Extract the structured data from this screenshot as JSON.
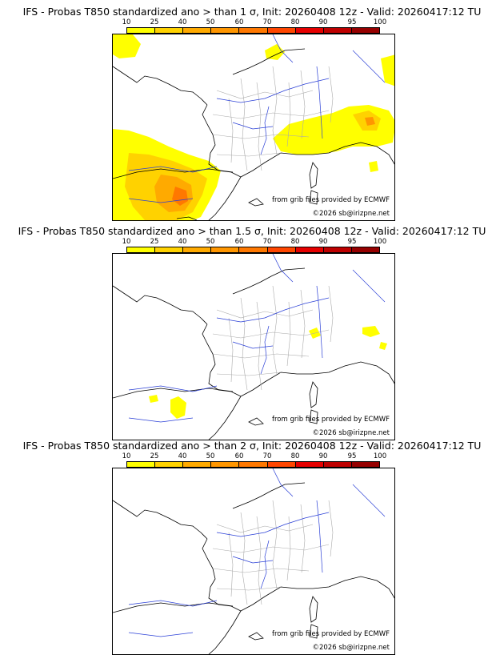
{
  "legend": {
    "ticks": [
      "10",
      "25",
      "40",
      "50",
      "60",
      "70",
      "80",
      "90",
      "95",
      "100"
    ],
    "colors": [
      "#ffff00",
      "#ffd200",
      "#ffaa00",
      "#ff9600",
      "#ff7800",
      "#ff4600",
      "#e60000",
      "#be0000",
      "#960000",
      "#640000"
    ]
  },
  "panels": [
    {
      "title": "IFS - Probas T850  standardized ano > than 1 σ, Init: 20260408 12z - Valid: 20260417:12 TU"
    },
    {
      "title": "IFS - Probas T850  standardized ano > than 1.5 σ, Init: 20260408 12z - Valid: 20260417:12 TU"
    },
    {
      "title": "IFS - Probas T850  standardized ano > than 2 σ, Init: 20260408 12z - Valid: 20260417:12 TU"
    }
  ],
  "credits": {
    "source": "from grib files provided by ECMWF",
    "copyright": "©2026 sb@irizpne.net"
  }
}
